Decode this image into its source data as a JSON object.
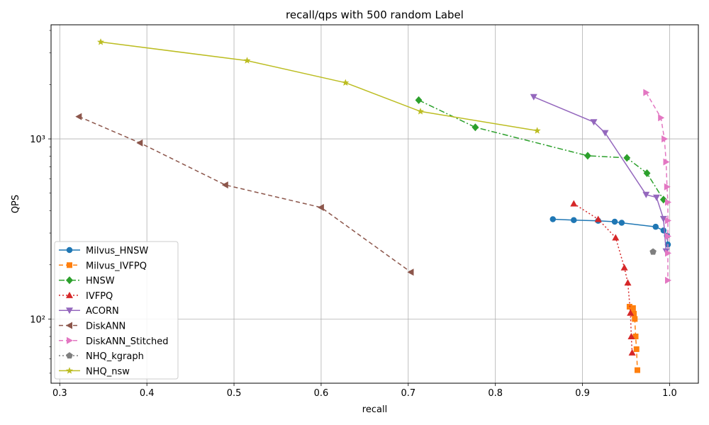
{
  "chart_data": {
    "type": "line",
    "title": "recall/qps with 500 random Label",
    "xlabel": "recall",
    "ylabel": "QPS",
    "xlim": [
      0.29,
      1.033
    ],
    "ylim": [
      44,
      4300
    ],
    "yscale": "log",
    "grid": true,
    "legend_position": "lower-left",
    "x_ticks": [
      0.3,
      0.4,
      0.5,
      0.6,
      0.7,
      0.8,
      0.9,
      1.0
    ],
    "x_tick_labels": [
      "0.3",
      "0.4",
      "0.5",
      "0.6",
      "0.7",
      "0.8",
      "0.9",
      "1.0"
    ],
    "y_ticks": [
      100,
      1000
    ],
    "y_tick_labels": [
      "10²",
      "10³"
    ],
    "series": [
      {
        "name": "Milvus_HNSW",
        "color": "#1f77b4",
        "marker": "circle",
        "dash": "",
        "x": [
          0.866,
          0.89,
          0.918,
          0.937,
          0.945,
          0.984,
          0.993,
          0.997,
          0.998
        ],
        "y": [
          358,
          354,
          351,
          347,
          342,
          325,
          310,
          290,
          259
        ]
      },
      {
        "name": "Milvus_IVFPQ",
        "color": "#ff7f0e",
        "marker": "square",
        "dash": "6,4",
        "x": [
          0.954,
          0.958,
          0.959,
          0.96,
          0.961,
          0.962,
          0.963
        ],
        "y": [
          117,
          115,
          107,
          100,
          80,
          68,
          52
        ]
      },
      {
        "name": "HNSW",
        "color": "#2ca02c",
        "marker": "diamond",
        "dash": "8,3,2,3",
        "x": [
          0.712,
          0.777,
          0.906,
          0.951,
          0.974,
          0.993
        ],
        "y": [
          1640,
          1160,
          806,
          784,
          645,
          460
        ]
      },
      {
        "name": "IVFPQ",
        "color": "#d62728",
        "marker": "triangle-up",
        "dash": "2,3",
        "x": [
          0.89,
          0.918,
          0.938,
          0.948,
          0.952,
          0.955,
          0.956,
          0.957
        ],
        "y": [
          437,
          358,
          283,
          193,
          159,
          108,
          80,
          65
        ]
      },
      {
        "name": "ACORN",
        "color": "#9467bd",
        "marker": "triangle-down",
        "dash": "",
        "x": [
          0.844,
          0.913,
          0.926,
          0.973,
          0.985,
          0.993,
          0.996
        ],
        "y": [
          1710,
          1240,
          1080,
          490,
          473,
          360,
          238
        ]
      },
      {
        "name": "DiskANN",
        "color": "#8c564b",
        "marker": "triangle-left",
        "dash": "6,4",
        "x": [
          0.322,
          0.392,
          0.49,
          0.6,
          0.703
        ],
        "y": [
          1330,
          950,
          555,
          416,
          182
        ]
      },
      {
        "name": "DiskANN_Stitched",
        "color": "#e377c2",
        "marker": "triangle-right",
        "dash": "6,4",
        "x": [
          0.973,
          0.99,
          0.994,
          0.996,
          0.997,
          0.998,
          0.998,
          0.998,
          0.998,
          0.998
        ],
        "y": [
          1810,
          1310,
          1000,
          745,
          542,
          445,
          352,
          288,
          232,
          164
        ]
      },
      {
        "name": "NHQ_kgraph",
        "color": "#7f7f7f",
        "marker": "pentagon",
        "dash": "2,3",
        "x": [
          0.981
        ],
        "y": [
          236
        ]
      },
      {
        "name": "NHQ_nsw",
        "color": "#bcbd22",
        "marker": "star",
        "dash": "",
        "x": [
          0.347,
          0.515,
          0.628,
          0.714,
          0.848
        ],
        "y": [
          3450,
          2720,
          2050,
          1420,
          1110
        ]
      }
    ]
  }
}
